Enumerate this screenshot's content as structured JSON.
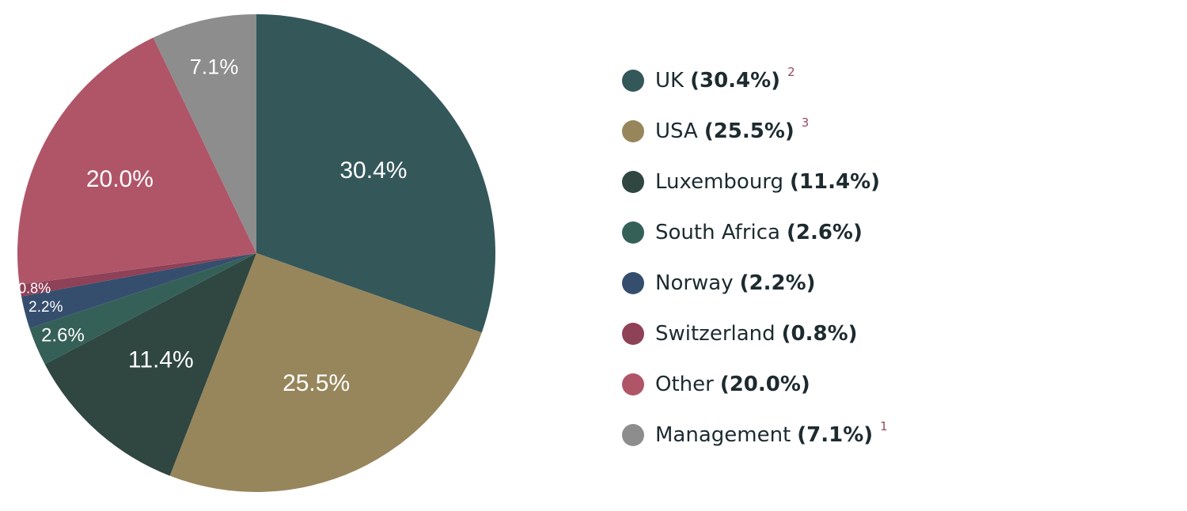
{
  "chart_data": {
    "type": "pie",
    "slices": [
      {
        "name": "UK",
        "value": 30.4,
        "label": "30.4%",
        "legend_pct": "(30.4%)",
        "note": "2",
        "color": "#34575a"
      },
      {
        "name": "USA",
        "value": 25.5,
        "label": "25.5%",
        "legend_pct": "(25.5%)",
        "note": "3",
        "color": "#97865c"
      },
      {
        "name": "Luxembourg",
        "value": 11.4,
        "label": "11.4%",
        "legend_pct": "(11.4%)",
        "note": "",
        "color": "#2f4641"
      },
      {
        "name": "South Africa",
        "value": 2.6,
        "label": "2.6%",
        "legend_pct": "(2.6%)",
        "note": "",
        "color": "#356058"
      },
      {
        "name": "Norway",
        "value": 2.2,
        "label": "2.2%",
        "legend_pct": "(2.2%)",
        "note": "",
        "color": "#354e6e"
      },
      {
        "name": "Switzerland",
        "value": 0.8,
        "label": "0.8%",
        "legend_pct": "(0.8%)",
        "note": "",
        "color": "#8e4157"
      },
      {
        "name": "Other",
        "value": 20.0,
        "label": "20.0%",
        "legend_pct": "(20.0%)",
        "note": "",
        "color": "#b05568"
      },
      {
        "name": "Management",
        "value": 7.1,
        "label": "7.1%",
        "legend_pct": "(7.1%)",
        "note": "1",
        "color": "#8e8d8d"
      }
    ],
    "start_angle": "12 o'clock",
    "direction": "clockwise",
    "legend_placement": "right"
  }
}
